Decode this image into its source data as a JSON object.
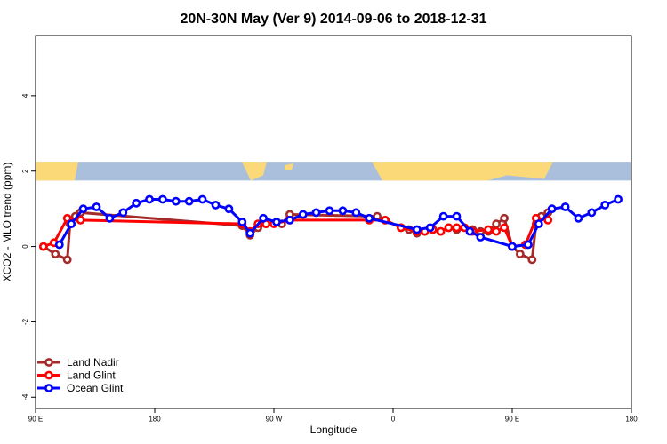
{
  "chart_data": {
    "type": "line",
    "title": "20N-30N May (Ver 9)   2014-09-06 to 2018-12-31",
    "xlabel": "Longitude",
    "ylabel": "XCO2 - MLO trend (ppm)",
    "x_ticks": [
      {
        "value": 90,
        "label": "90 E"
      },
      {
        "value": 180,
        "label": "180"
      },
      {
        "value": 270,
        "label": "90 W"
      },
      {
        "value": 360,
        "label": "0"
      },
      {
        "value": 450,
        "label": "90 E"
      },
      {
        "value": 540,
        "label": "180"
      }
    ],
    "y_ticks": [
      {
        "value": -4,
        "label": "-4"
      },
      {
        "value": -2,
        "label": "-2"
      },
      {
        "value": 0,
        "label": "0"
      },
      {
        "value": 2,
        "label": "2"
      },
      {
        "value": 4,
        "label": "4"
      }
    ],
    "xlim": [
      90,
      540
    ],
    "ylim": [
      -4.3,
      5.6
    ],
    "grid": false,
    "legend_position": "bottom-left",
    "map_strip": {
      "y_range": [
        1.75,
        2.25
      ],
      "ocean_color": "#a9bfdb",
      "land_color": "#fcd978"
    },
    "series": [
      {
        "name": "Land Nadir",
        "color": "#a52a2a",
        "points": [
          [
            96,
            0.0
          ],
          [
            105,
            -0.2
          ],
          [
            114,
            -0.35
          ],
          [
            116,
            0.6
          ],
          [
            120,
            0.8
          ],
          [
            124,
            0.9
          ],
          [
            246,
            0.55
          ],
          [
            252,
            0.3
          ],
          [
            258,
            0.5
          ],
          [
            264,
            0.6
          ],
          [
            276,
            0.6
          ],
          [
            282,
            0.85
          ],
          [
            348,
            0.8
          ],
          [
            354,
            0.7
          ],
          [
            366,
            0.5
          ],
          [
            372,
            0.45
          ],
          [
            378,
            0.35
          ],
          [
            384,
            0.4
          ],
          [
            390,
            0.45
          ],
          [
            396,
            0.4
          ],
          [
            402,
            0.5
          ],
          [
            408,
            0.45
          ],
          [
            420,
            0.45
          ],
          [
            426,
            0.4
          ],
          [
            432,
            0.4
          ],
          [
            438,
            0.6
          ],
          [
            444,
            0.75
          ],
          [
            450,
            0.0
          ],
          [
            456,
            -0.2
          ],
          [
            465,
            -0.35
          ],
          [
            468,
            0.6
          ],
          [
            472,
            0.8
          ],
          [
            477,
            0.9
          ]
        ]
      },
      {
        "name": "Land Glint",
        "color": "#ff0000",
        "points": [
          [
            96,
            0.0
          ],
          [
            104,
            0.1
          ],
          [
            114,
            0.75
          ],
          [
            124,
            0.7
          ],
          [
            246,
            0.6
          ],
          [
            252,
            0.4
          ],
          [
            258,
            0.6
          ],
          [
            264,
            0.6
          ],
          [
            270,
            0.6
          ],
          [
            282,
            0.7
          ],
          [
            342,
            0.7
          ],
          [
            354,
            0.7
          ],
          [
            366,
            0.5
          ],
          [
            378,
            0.4
          ],
          [
            384,
            0.4
          ],
          [
            390,
            0.45
          ],
          [
            396,
            0.4
          ],
          [
            402,
            0.5
          ],
          [
            408,
            0.5
          ],
          [
            414,
            0.5
          ],
          [
            420,
            0.4
          ],
          [
            432,
            0.45
          ],
          [
            438,
            0.4
          ],
          [
            444,
            0.5
          ],
          [
            450,
            0.0
          ],
          [
            460,
            0.05
          ],
          [
            468,
            0.75
          ],
          [
            477,
            0.7
          ]
        ]
      },
      {
        "name": "Ocean Glint",
        "color": "#0000ff",
        "points": [
          [
            108,
            0.05
          ],
          [
            117,
            0.6
          ],
          [
            126,
            1.0
          ],
          [
            136,
            1.05
          ],
          [
            146,
            0.75
          ],
          [
            156,
            0.9
          ],
          [
            166,
            1.15
          ],
          [
            176,
            1.25
          ],
          [
            186,
            1.25
          ],
          [
            196,
            1.2
          ],
          [
            206,
            1.2
          ],
          [
            216,
            1.25
          ],
          [
            226,
            1.1
          ],
          [
            236,
            1.0
          ],
          [
            246,
            0.65
          ],
          [
            252,
            0.35
          ],
          [
            262,
            0.75
          ],
          [
            272,
            0.65
          ],
          [
            282,
            0.7
          ],
          [
            292,
            0.85
          ],
          [
            302,
            0.9
          ],
          [
            312,
            0.95
          ],
          [
            322,
            0.95
          ],
          [
            332,
            0.9
          ],
          [
            342,
            0.75
          ],
          [
            378,
            0.45
          ],
          [
            388,
            0.5
          ],
          [
            398,
            0.8
          ],
          [
            408,
            0.8
          ],
          [
            418,
            0.4
          ],
          [
            426,
            0.25
          ],
          [
            450,
            0.0
          ],
          [
            462,
            0.05
          ],
          [
            470,
            0.6
          ],
          [
            480,
            1.0
          ],
          [
            490,
            1.05
          ],
          [
            500,
            0.75
          ],
          [
            510,
            0.9
          ],
          [
            520,
            1.1
          ],
          [
            530,
            1.25
          ]
        ]
      }
    ]
  }
}
